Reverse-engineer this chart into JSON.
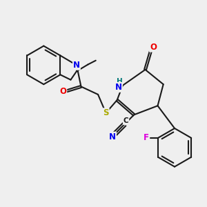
{
  "background_color": "#efefef",
  "bond_color": "#1a1a1a",
  "bond_width": 1.5,
  "atom_colors": {
    "N": "#0000ee",
    "O": "#ee0000",
    "S": "#aaaa00",
    "F": "#dd00dd",
    "H": "#007777",
    "C": "#1a1a1a"
  }
}
